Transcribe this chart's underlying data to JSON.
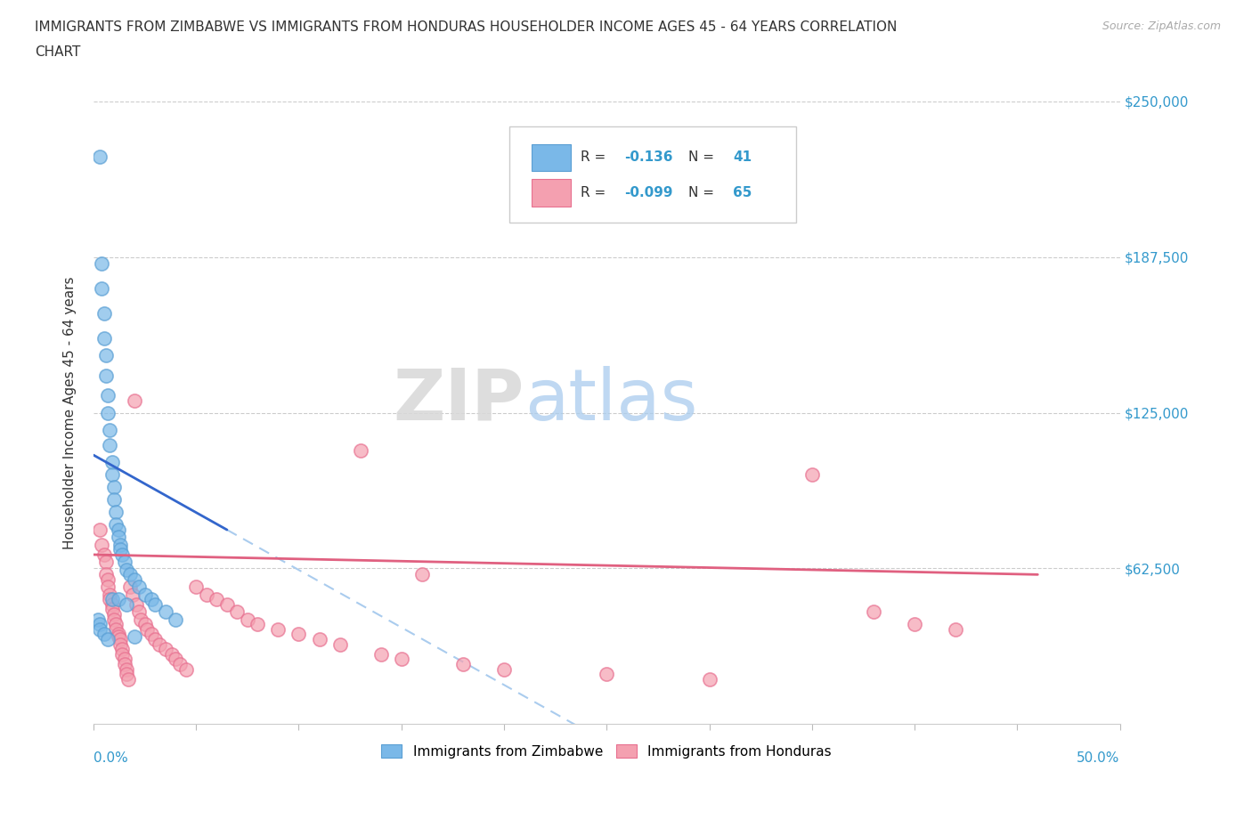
{
  "title_line1": "IMMIGRANTS FROM ZIMBABWE VS IMMIGRANTS FROM HONDURAS HOUSEHOLDER INCOME AGES 45 - 64 YEARS CORRELATION",
  "title_line2": "CHART",
  "source_text": "Source: ZipAtlas.com",
  "ylabel": "Householder Income Ages 45 - 64 years",
  "xlim": [
    0.0,
    0.5
  ],
  "ylim": [
    0,
    250000
  ],
  "ytick_labels": [
    "$62,500",
    "$125,000",
    "$187,500",
    "$250,000"
  ],
  "ytick_values": [
    62500,
    125000,
    187500,
    250000
  ],
  "zimbabwe_color": "#7ab8e8",
  "zimbabwe_edge": "#5a9fd4",
  "honduras_color": "#f4a0b0",
  "honduras_edge": "#e87090",
  "trendline_zimbabwe_color": "#3366cc",
  "trendline_honduras_color": "#e06080",
  "dashed_line_color": "#aaccee",
  "R_zimbabwe": -0.136,
  "N_zimbabwe": 41,
  "R_honduras": -0.099,
  "N_honduras": 65,
  "zim_x": [
    0.003,
    0.004,
    0.004,
    0.005,
    0.005,
    0.006,
    0.006,
    0.007,
    0.007,
    0.008,
    0.008,
    0.009,
    0.009,
    0.01,
    0.01,
    0.011,
    0.011,
    0.012,
    0.012,
    0.013,
    0.013,
    0.014,
    0.015,
    0.016,
    0.018,
    0.02,
    0.022,
    0.025,
    0.028,
    0.03,
    0.035,
    0.04,
    0.002,
    0.003,
    0.003,
    0.005,
    0.007,
    0.009,
    0.012,
    0.016,
    0.02
  ],
  "zim_y": [
    228000,
    185000,
    175000,
    165000,
    155000,
    148000,
    140000,
    132000,
    125000,
    118000,
    112000,
    105000,
    100000,
    95000,
    90000,
    85000,
    80000,
    78000,
    75000,
    72000,
    70000,
    68000,
    65000,
    62000,
    60000,
    58000,
    55000,
    52000,
    50000,
    48000,
    45000,
    42000,
    42000,
    40000,
    38000,
    36000,
    34000,
    50000,
    50000,
    48000,
    35000
  ],
  "hon_x": [
    0.003,
    0.004,
    0.005,
    0.006,
    0.006,
    0.007,
    0.007,
    0.008,
    0.008,
    0.009,
    0.009,
    0.01,
    0.01,
    0.011,
    0.011,
    0.012,
    0.012,
    0.013,
    0.013,
    0.014,
    0.014,
    0.015,
    0.015,
    0.016,
    0.016,
    0.017,
    0.018,
    0.019,
    0.02,
    0.021,
    0.022,
    0.023,
    0.025,
    0.026,
    0.028,
    0.03,
    0.032,
    0.035,
    0.038,
    0.04,
    0.042,
    0.045,
    0.05,
    0.055,
    0.06,
    0.065,
    0.07,
    0.075,
    0.08,
    0.09,
    0.1,
    0.11,
    0.12,
    0.13,
    0.14,
    0.15,
    0.16,
    0.18,
    0.2,
    0.25,
    0.3,
    0.35,
    0.38,
    0.4,
    0.42
  ],
  "hon_y": [
    78000,
    72000,
    68000,
    65000,
    60000,
    58000,
    55000,
    52000,
    50000,
    48000,
    46000,
    44000,
    42000,
    40000,
    38000,
    36000,
    35000,
    34000,
    32000,
    30000,
    28000,
    26000,
    24000,
    22000,
    20000,
    18000,
    55000,
    52000,
    130000,
    48000,
    45000,
    42000,
    40000,
    38000,
    36000,
    34000,
    32000,
    30000,
    28000,
    26000,
    24000,
    22000,
    55000,
    52000,
    50000,
    48000,
    45000,
    42000,
    40000,
    38000,
    36000,
    34000,
    32000,
    110000,
    28000,
    26000,
    60000,
    24000,
    22000,
    20000,
    18000,
    100000,
    45000,
    40000,
    38000
  ]
}
